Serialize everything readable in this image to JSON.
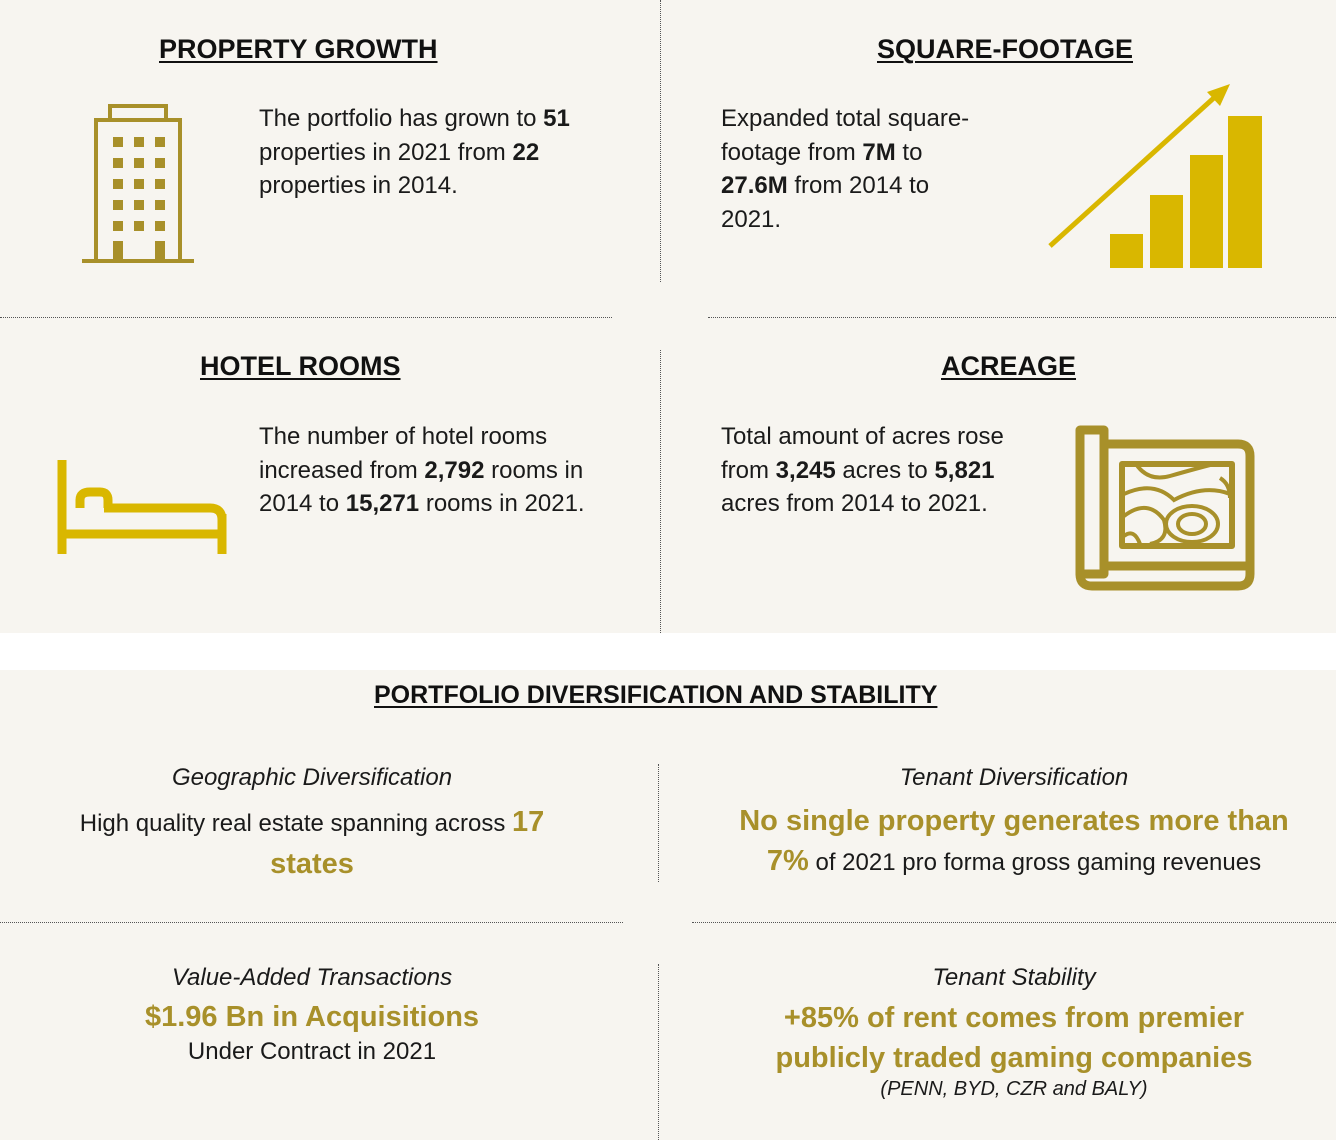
{
  "colors": {
    "background": "#f7f5f0",
    "gold_dark": "#a8902a",
    "gold_bright": "#d9b700",
    "text": "#1a1a1a"
  },
  "property_growth": {
    "title": "PROPERTY GROWTH",
    "icon": "building-icon",
    "text_1": "The portfolio has grown to ",
    "value_1": "51",
    "text_2": " properties in 2021 from ",
    "value_2": "22",
    "text_3": " properties in 2014."
  },
  "square_footage": {
    "title": "SQUARE-FOOTAGE",
    "icon": "growth-bar-chart-icon",
    "text_1": "Expanded total square-footage from ",
    "value_1": "7M",
    "text_2": " to ",
    "value_2": "27.6M",
    "text_3": " from 2014 to 2021."
  },
  "hotel_rooms": {
    "title": "HOTEL ROOMS",
    "icon": "bed-icon",
    "text_1": "The number of hotel rooms increased from ",
    "value_1": "2,792",
    "text_2": " rooms in 2014 to ",
    "value_2": "15,271",
    "text_3": " rooms in 2021."
  },
  "acreage": {
    "title": "ACREAGE",
    "icon": "land-map-scroll-icon",
    "text_1": "Total amount of acres rose from ",
    "value_1": "3,245",
    "text_2": " acres to ",
    "value_2": "5,821",
    "text_3": " acres from 2014 to 2021."
  },
  "diversification": {
    "title": "PORTFOLIO DIVERSIFICATION AND STABILITY",
    "geographic": {
      "heading": "Geographic Diversification",
      "text": "High quality real estate spanning across ",
      "highlight": "17 states"
    },
    "tenant_div": {
      "heading": "Tenant Diversification",
      "highlight_1": "No single property generates more than",
      "highlight_2": "7%",
      "text": " of 2021 pro forma gross gaming revenues"
    },
    "value_added": {
      "heading": "Value-Added Transactions",
      "highlight": "$1.96 Bn in Acquisitions",
      "text": "Under Contract in 2021"
    },
    "tenant_stability": {
      "heading": "Tenant Stability",
      "highlight": "+85% of rent comes from premier publicly traded gaming companies",
      "note": "(PENN, BYD, CZR and BALY)"
    }
  }
}
